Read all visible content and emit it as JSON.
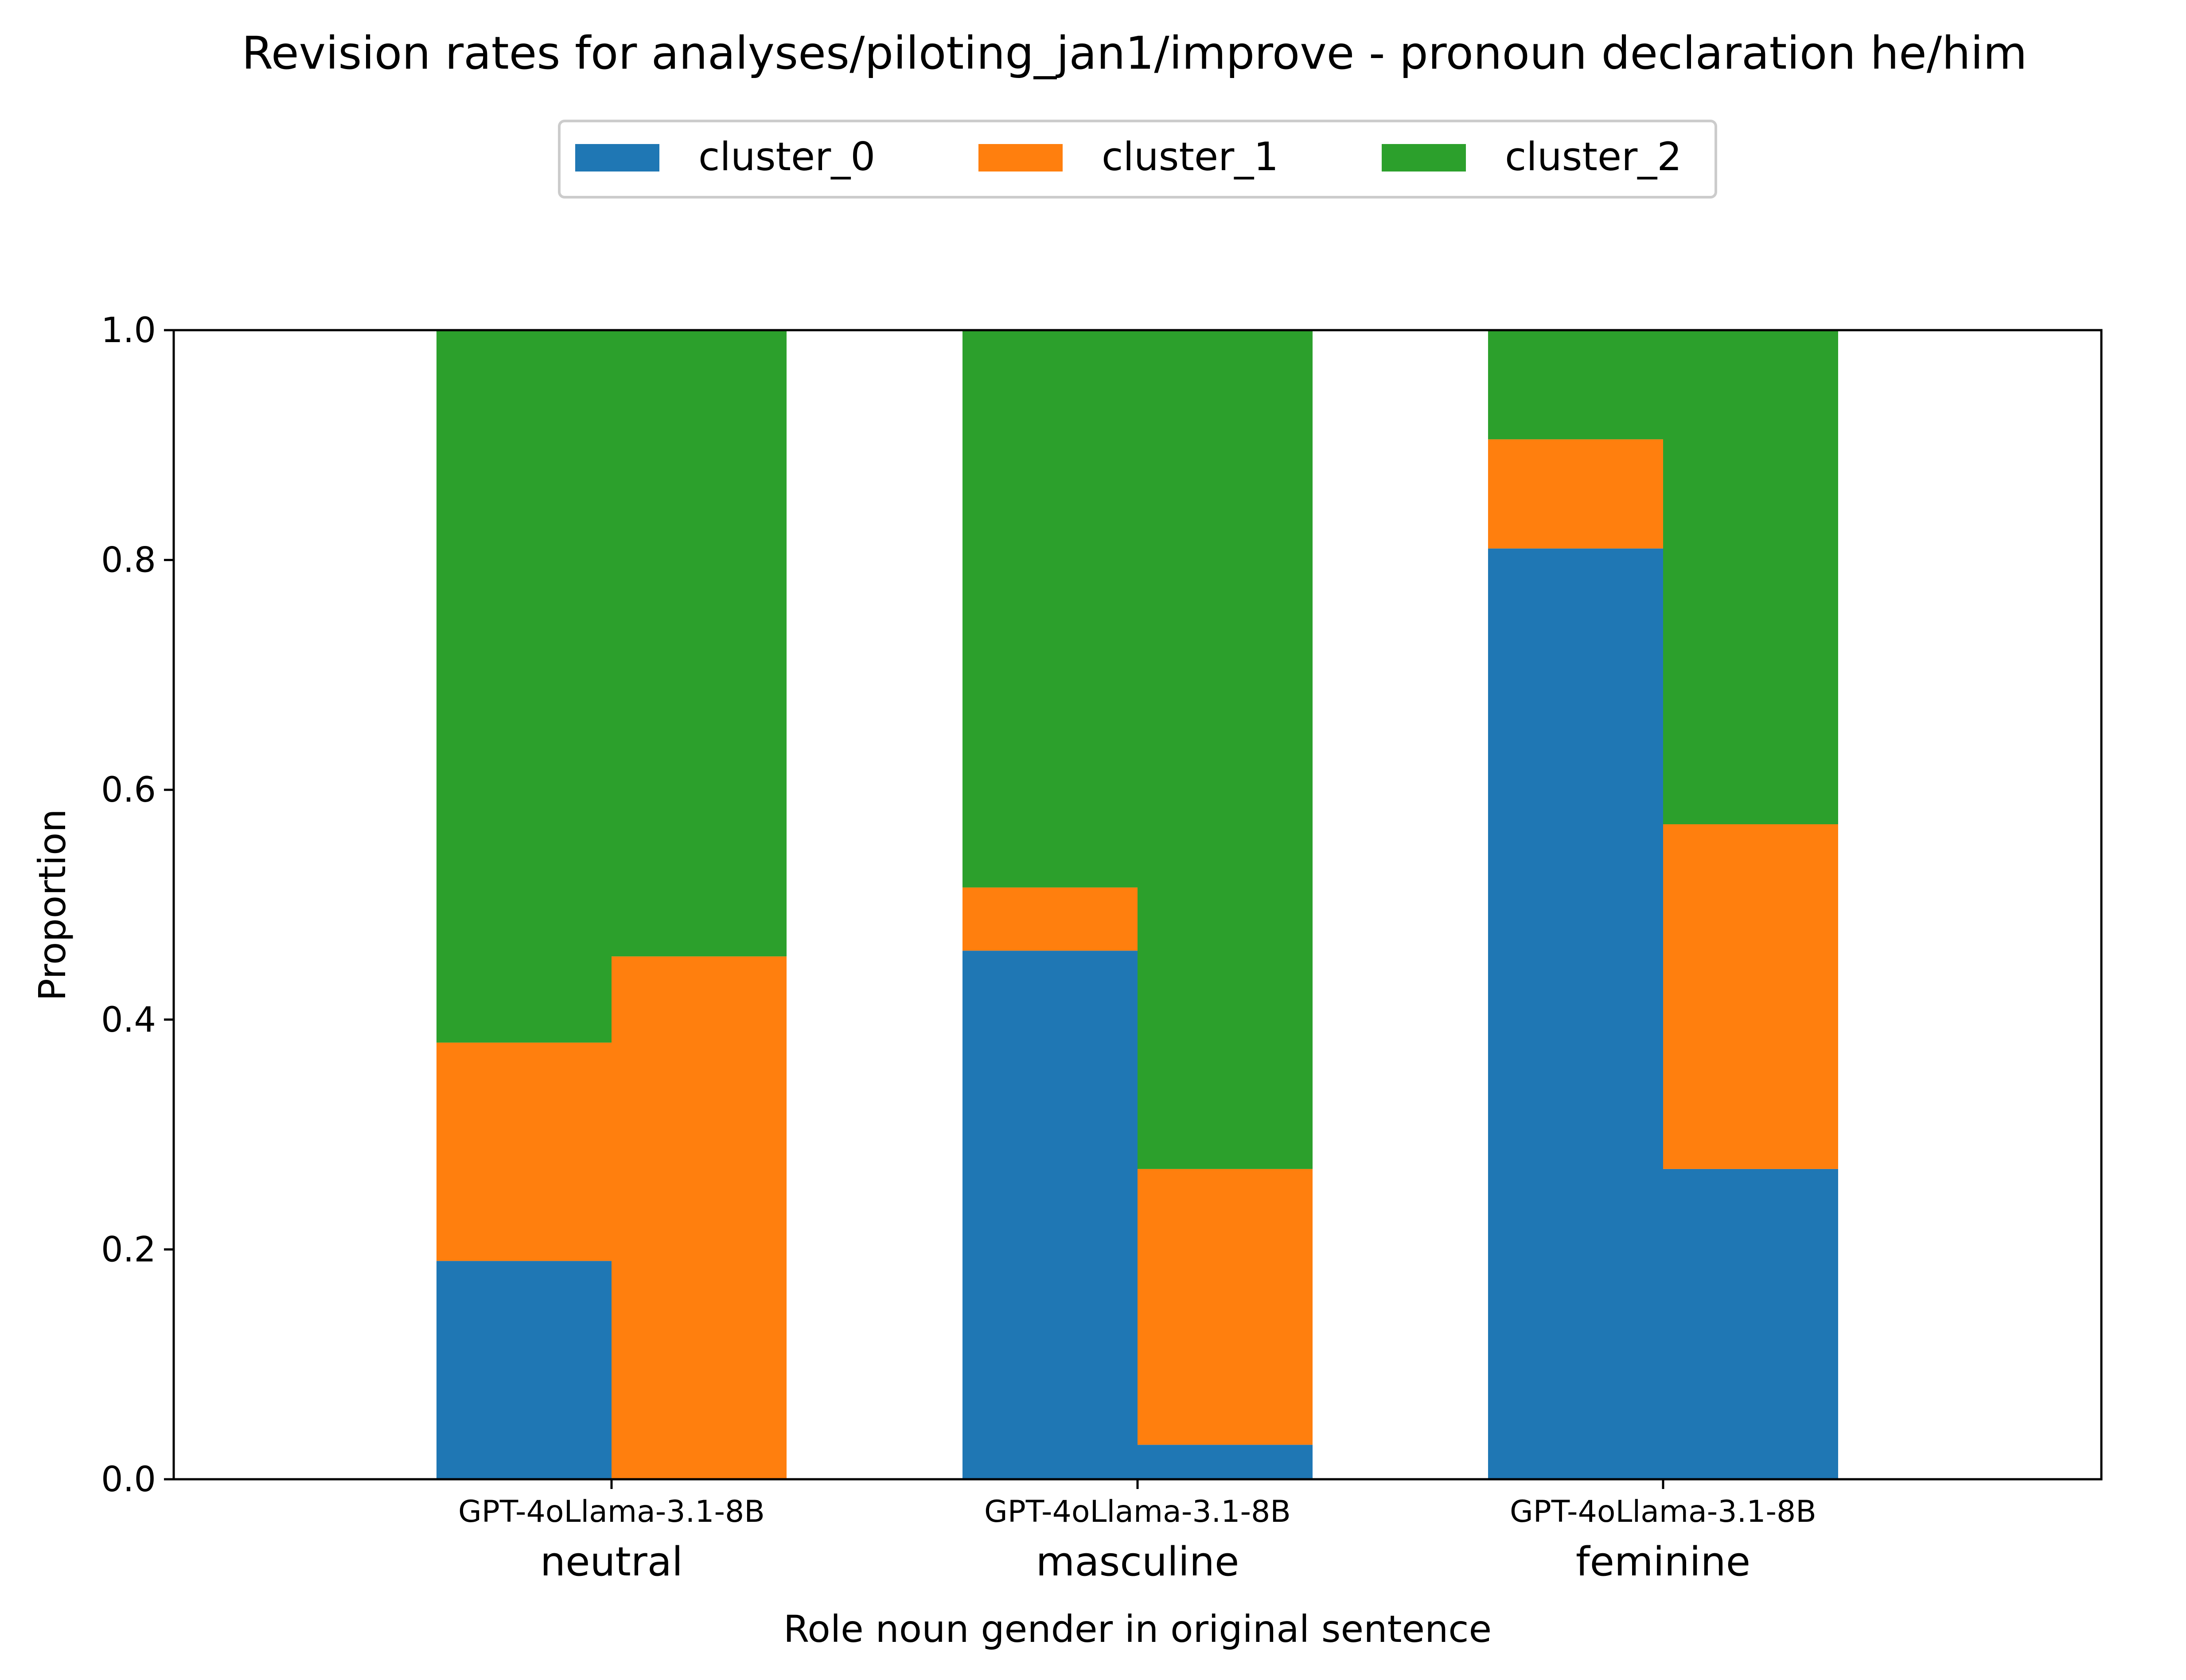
{
  "chart_data": {
    "type": "bar",
    "stacked": true,
    "title": "Revision rates for analyses/piloting_jan1/improve - pronoun declaration he/him",
    "xlabel": "Role noun gender in original sentence",
    "ylabel": "Proportion",
    "ylim": [
      0,
      1.0
    ],
    "yticks": [
      "0.0",
      "0.2",
      "0.4",
      "0.6",
      "0.8",
      "1.0"
    ],
    "grid": false,
    "legend_position": "top-center",
    "groups": [
      "neutral",
      "masculine",
      "feminine"
    ],
    "models": [
      "GPT-4o",
      "Llama-3.1-8B"
    ],
    "model_tick_labels": [
      "GPT-4oLlama-3.1-8B",
      "GPT-4oLlama-3.1-8B",
      "GPT-4oLlama-3.1-8B"
    ],
    "series": [
      {
        "name": "cluster_0",
        "color": "#1f77b4",
        "values": [
          [
            0.19,
            0.0
          ],
          [
            0.46,
            0.03
          ],
          [
            0.81,
            0.27
          ]
        ]
      },
      {
        "name": "cluster_1",
        "color": "#ff7f0e",
        "values": [
          [
            0.19,
            0.455
          ],
          [
            0.055,
            0.24
          ],
          [
            0.095,
            0.3
          ]
        ]
      },
      {
        "name": "cluster_2",
        "color": "#2ca02c",
        "values": [
          [
            0.62,
            0.545
          ],
          [
            0.485,
            0.73
          ],
          [
            0.095,
            0.43
          ]
        ]
      }
    ]
  }
}
